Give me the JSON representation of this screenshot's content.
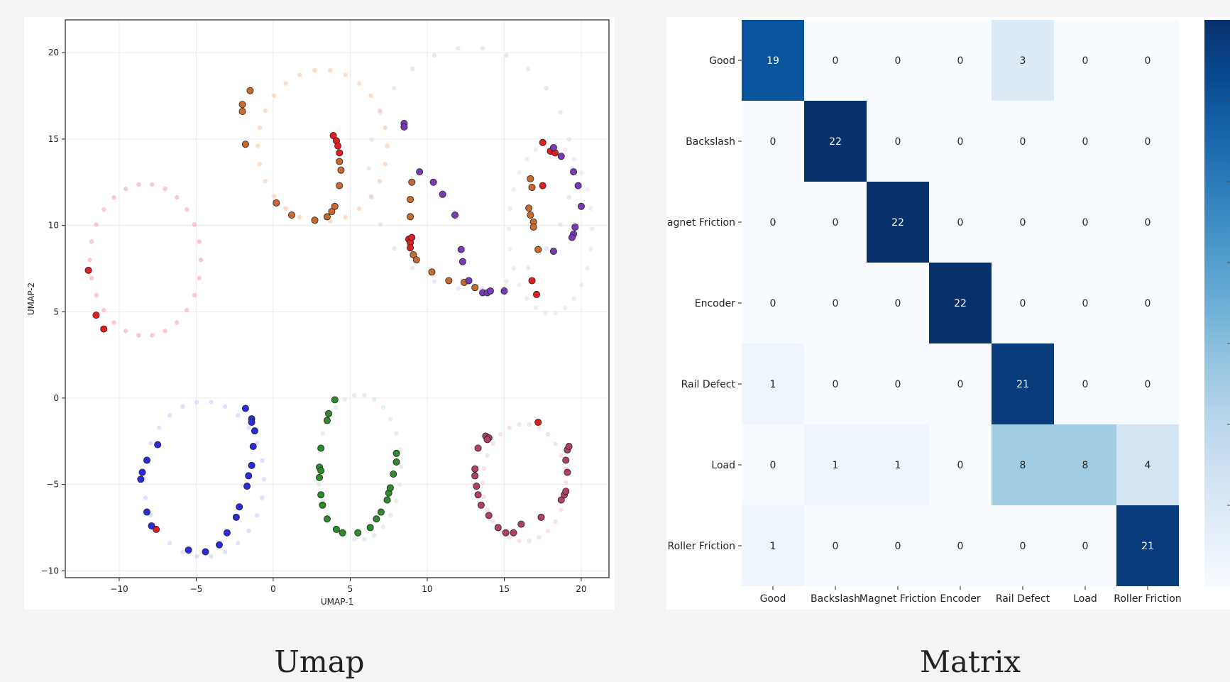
{
  "captions": {
    "left": "Umap",
    "right": "Matrix"
  },
  "chart_data": [
    {
      "type": "scatter",
      "title": "",
      "xlabel": "UMAP-1",
      "ylabel": "UMAP-2",
      "xlim": [
        -13.5,
        21.8
      ],
      "ylim": [
        -10.4,
        21.9
      ],
      "xticks": [
        -10,
        -5,
        0,
        5,
        10,
        15,
        20
      ],
      "yticks": [
        -10,
        -5,
        0,
        5,
        10,
        15,
        20
      ],
      "grid": true,
      "legend": "none",
      "rings": [
        {
          "cx": -8.3,
          "cy": 8.0,
          "rx": 3.6,
          "ry": 4.4,
          "color": "#ff9aa0"
        },
        {
          "cx": 3.2,
          "cy": 14.6,
          "rx": 4.2,
          "ry": 4.4,
          "color": "#f2c2a0"
        },
        {
          "cx": 12.8,
          "cy": 13.3,
          "rx": 6.6,
          "ry": 7.0,
          "color": "#d8d0f0"
        },
        {
          "cx": 18.0,
          "cy": 9.8,
          "rx": 2.7,
          "ry": 4.9,
          "color": "#e8d8f4"
        },
        {
          "cx": -4.5,
          "cy": -4.7,
          "rx": 3.9,
          "ry": 4.5,
          "color": "#c8c8ff"
        },
        {
          "cx": 5.6,
          "cy": -4.0,
          "rx": 2.7,
          "ry": 4.2,
          "color": "#c8e8c8"
        },
        {
          "cx": 16.3,
          "cy": -4.9,
          "rx": 2.7,
          "ry": 3.4,
          "color": "#f0c8d8"
        }
      ],
      "series": [
        {
          "color": "#e02020",
          "points": [
            [
              -12.0,
              7.4
            ],
            [
              -11.5,
              4.8
            ],
            [
              -11.0,
              4.0
            ],
            [
              3.9,
              15.2
            ],
            [
              4.1,
              14.9
            ],
            [
              4.2,
              14.6
            ],
            [
              4.3,
              14.2
            ],
            [
              17.5,
              14.8
            ],
            [
              18.0,
              14.3
            ],
            [
              18.3,
              14.2
            ],
            [
              17.5,
              12.3
            ],
            [
              8.8,
              9.2
            ],
            [
              8.9,
              9.0
            ],
            [
              8.9,
              8.7
            ],
            [
              9.0,
              9.3
            ],
            [
              17.1,
              6.0
            ],
            [
              16.8,
              6.8
            ],
            [
              -7.6,
              -7.6
            ],
            [
              17.2,
              -1.4
            ]
          ]
        },
        {
          "color": "#c86a30",
          "points": [
            [
              -2.0,
              17.0
            ],
            [
              -2.0,
              16.6
            ],
            [
              -1.5,
              17.8
            ],
            [
              -1.8,
              14.7
            ],
            [
              0.2,
              11.3
            ],
            [
              1.2,
              10.6
            ],
            [
              2.7,
              10.3
            ],
            [
              3.5,
              10.5
            ],
            [
              3.8,
              10.8
            ],
            [
              4.0,
              11.1
            ],
            [
              4.3,
              12.3
            ],
            [
              4.4,
              13.2
            ],
            [
              4.3,
              13.7
            ],
            [
              8.9,
              11.5
            ],
            [
              9.0,
              12.5
            ],
            [
              8.9,
              10.5
            ],
            [
              9.1,
              8.3
            ],
            [
              9.3,
              8.0
            ],
            [
              10.3,
              7.3
            ],
            [
              11.4,
              6.8
            ],
            [
              12.4,
              6.7
            ],
            [
              13.1,
              6.4
            ],
            [
              16.7,
              12.7
            ],
            [
              16.8,
              12.2
            ],
            [
              16.6,
              11.0
            ],
            [
              16.7,
              10.6
            ],
            [
              16.9,
              10.2
            ],
            [
              16.9,
              9.9
            ],
            [
              17.2,
              8.6
            ]
          ]
        },
        {
          "color": "#7a3ab8",
          "points": [
            [
              8.5,
              15.9
            ],
            [
              8.5,
              15.7
            ],
            [
              9.5,
              13.1
            ],
            [
              10.4,
              12.5
            ],
            [
              11.0,
              11.8
            ],
            [
              11.8,
              10.6
            ],
            [
              12.2,
              8.6
            ],
            [
              12.3,
              7.9
            ],
            [
              12.7,
              6.8
            ],
            [
              13.6,
              6.1
            ],
            [
              13.9,
              6.1
            ],
            [
              14.1,
              6.2
            ],
            [
              15.0,
              6.2
            ],
            [
              18.2,
              14.5
            ],
            [
              18.7,
              14.0
            ],
            [
              19.5,
              13.1
            ],
            [
              19.8,
              12.3
            ],
            [
              20.0,
              11.1
            ],
            [
              19.6,
              9.9
            ],
            [
              19.5,
              9.5
            ],
            [
              19.4,
              9.3
            ],
            [
              18.2,
              8.5
            ]
          ]
        },
        {
          "color": "#2b2bdc",
          "points": [
            [
              -1.8,
              -0.6
            ],
            [
              -1.4,
              -1.2
            ],
            [
              -1.4,
              -1.4
            ],
            [
              -1.2,
              -1.9
            ],
            [
              -1.3,
              -2.8
            ],
            [
              -1.4,
              -3.9
            ],
            [
              -1.6,
              -4.5
            ],
            [
              -1.7,
              -5.1
            ],
            [
              -2.2,
              -6.3
            ],
            [
              -2.4,
              -6.9
            ],
            [
              -3.0,
              -7.8
            ],
            [
              -3.5,
              -8.5
            ],
            [
              -4.4,
              -8.9
            ],
            [
              -5.5,
              -8.8
            ],
            [
              -7.5,
              -2.7
            ],
            [
              -8.2,
              -3.6
            ],
            [
              -8.5,
              -4.3
            ],
            [
              -8.6,
              -4.7
            ],
            [
              -8.2,
              -6.6
            ],
            [
              -7.9,
              -7.4
            ]
          ]
        },
        {
          "color": "#2f8a2f",
          "points": [
            [
              4.0,
              -0.1
            ],
            [
              3.6,
              -0.9
            ],
            [
              3.5,
              -1.3
            ],
            [
              3.1,
              -2.9
            ],
            [
              3.0,
              -4.0
            ],
            [
              3.1,
              -4.2
            ],
            [
              3.0,
              -4.6
            ],
            [
              3.1,
              -5.6
            ],
            [
              3.2,
              -6.2
            ],
            [
              3.5,
              -7.0
            ],
            [
              4.1,
              -7.6
            ],
            [
              4.5,
              -7.8
            ],
            [
              5.5,
              -7.8
            ],
            [
              6.3,
              -7.5
            ],
            [
              6.7,
              -7.0
            ],
            [
              7.0,
              -6.6
            ],
            [
              7.4,
              -5.9
            ],
            [
              7.5,
              -5.5
            ],
            [
              7.6,
              -5.2
            ],
            [
              7.8,
              -4.4
            ],
            [
              8.0,
              -3.7
            ],
            [
              8.0,
              -3.2
            ]
          ]
        },
        {
          "color": "#b04068",
          "points": [
            [
              13.8,
              -2.2
            ],
            [
              14.0,
              -2.3
            ],
            [
              13.9,
              -2.4
            ],
            [
              13.3,
              -2.9
            ],
            [
              13.1,
              -4.1
            ],
            [
              13.1,
              -4.5
            ],
            [
              13.2,
              -5.1
            ],
            [
              13.3,
              -5.6
            ],
            [
              13.5,
              -6.2
            ],
            [
              14.0,
              -6.8
            ],
            [
              14.6,
              -7.5
            ],
            [
              15.1,
              -7.8
            ],
            [
              15.6,
              -7.8
            ],
            [
              16.1,
              -7.3
            ],
            [
              17.4,
              -6.9
            ],
            [
              18.7,
              -5.9
            ],
            [
              18.9,
              -5.6
            ],
            [
              19.0,
              -5.4
            ],
            [
              19.1,
              -4.3
            ],
            [
              19.0,
              -3.6
            ],
            [
              19.1,
              -3.0
            ],
            [
              19.2,
              -2.8
            ]
          ]
        }
      ]
    },
    {
      "type": "heatmap",
      "title": "",
      "xlabel": "",
      "ylabel": "",
      "categories": [
        "Good",
        "Backslash",
        "Magnet Friction",
        "Encoder",
        "Rail Defect",
        "Load",
        "Roller Friction"
      ],
      "matrix": [
        [
          19,
          0,
          0,
          0,
          3,
          0,
          0
        ],
        [
          0,
          22,
          0,
          0,
          0,
          0,
          0
        ],
        [
          0,
          0,
          22,
          0,
          0,
          0,
          0
        ],
        [
          0,
          0,
          0,
          22,
          0,
          0,
          0
        ],
        [
          1,
          0,
          0,
          0,
          21,
          0,
          0
        ],
        [
          0,
          1,
          1,
          0,
          8,
          8,
          4
        ],
        [
          1,
          0,
          0,
          0,
          0,
          0,
          21
        ]
      ],
      "vmin": 0,
      "vmax": 22,
      "colormap": "Blues",
      "colorbar": true
    }
  ]
}
